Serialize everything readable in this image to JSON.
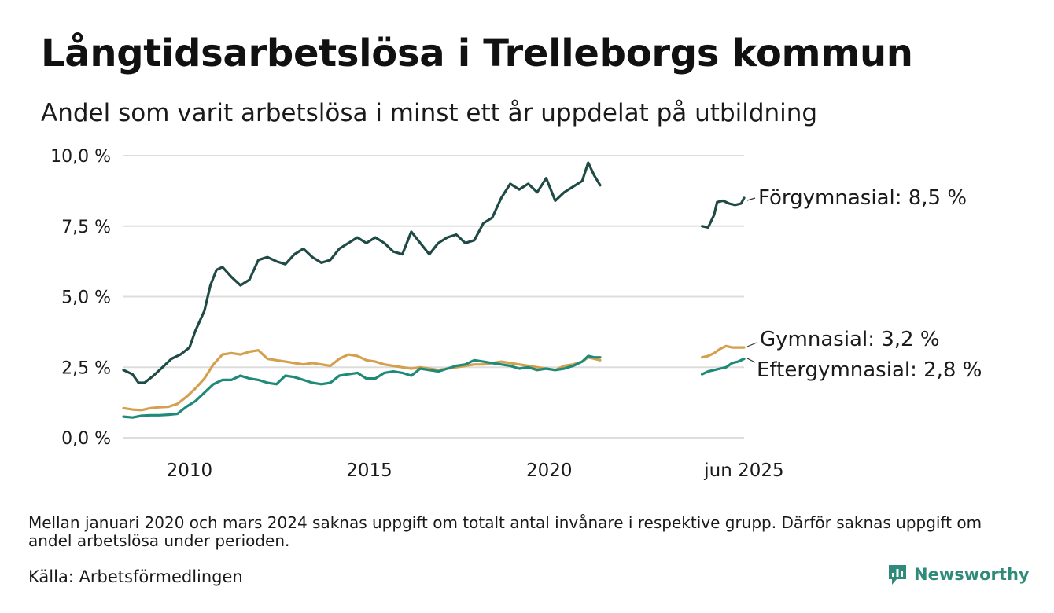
{
  "title": "Långtidsarbetslösa i Trelleborgs kommun",
  "subtitle": "Andel som varit arbetslösa i minst ett år uppdelat på utbildning",
  "note": "Mellan januari 2020 och mars 2024 saknas uppgift om totalt antal invånare i respektive grupp. Därför saknas uppgift om andel arbetslösa under perioden.",
  "source": "Källa: Arbetsförmedlingen",
  "brand": {
    "name": "Newsworthy",
    "logo_icon": "newsworthy-logo-icon"
  },
  "colors": {
    "forgymnasial": "#1f4a45",
    "gymnasial": "#d4a04e",
    "eftergymnasial": "#1f8a78",
    "grid": "#dddddd",
    "text": "#1a1a1a",
    "brand": "#2f8a7a"
  },
  "chart_data": {
    "type": "line",
    "title": "Långtidsarbetslösa i Trelleborgs kommun",
    "subtitle": "Andel som varit arbetslösa i minst ett år uppdelat på utbildning",
    "xlabel": "",
    "ylabel": "",
    "ylim": [
      0,
      10
    ],
    "xlim": [
      "2008-03",
      "2025-06"
    ],
    "y_ticks": [
      "0,0 %",
      "2,5 %",
      "5,0 %",
      "7,5 %",
      "10,0 %"
    ],
    "y_tick_values": [
      0,
      2.5,
      5,
      7.5,
      10
    ],
    "x_ticks": [
      {
        "date": "2010-01",
        "label": "2010"
      },
      {
        "date": "2015-01",
        "label": "2015"
      },
      {
        "date": "2020-01",
        "label": "2020"
      },
      {
        "date": "2025-06",
        "label": "jun 2025"
      }
    ],
    "grid": true,
    "series": [
      {
        "name": "Förgymnasial",
        "end_label": "Förgymnasial: 8,5 %",
        "color_key": "forgymnasial",
        "points": [
          [
            "2008-03",
            2.4
          ],
          [
            "2008-06",
            2.25
          ],
          [
            "2008-08",
            1.95
          ],
          [
            "2008-10",
            1.95
          ],
          [
            "2009-01",
            2.2
          ],
          [
            "2009-04",
            2.5
          ],
          [
            "2009-07",
            2.8
          ],
          [
            "2009-10",
            2.95
          ],
          [
            "2010-01",
            3.2
          ],
          [
            "2010-03",
            3.8
          ],
          [
            "2010-06",
            4.5
          ],
          [
            "2010-08",
            5.4
          ],
          [
            "2010-10",
            5.95
          ],
          [
            "2010-12",
            6.05
          ],
          [
            "2011-03",
            5.7
          ],
          [
            "2011-06",
            5.4
          ],
          [
            "2011-09",
            5.6
          ],
          [
            "2011-12",
            6.3
          ],
          [
            "2012-03",
            6.4
          ],
          [
            "2012-06",
            6.25
          ],
          [
            "2012-09",
            6.15
          ],
          [
            "2012-12",
            6.5
          ],
          [
            "2013-03",
            6.7
          ],
          [
            "2013-06",
            6.4
          ],
          [
            "2013-09",
            6.2
          ],
          [
            "2013-12",
            6.3
          ],
          [
            "2014-03",
            6.7
          ],
          [
            "2014-06",
            6.9
          ],
          [
            "2014-09",
            7.1
          ],
          [
            "2014-12",
            6.9
          ],
          [
            "2015-03",
            7.1
          ],
          [
            "2015-06",
            6.9
          ],
          [
            "2015-09",
            6.6
          ],
          [
            "2015-12",
            6.5
          ],
          [
            "2016-03",
            7.3
          ],
          [
            "2016-06",
            6.9
          ],
          [
            "2016-09",
            6.5
          ],
          [
            "2016-12",
            6.9
          ],
          [
            "2017-03",
            7.1
          ],
          [
            "2017-06",
            7.2
          ],
          [
            "2017-09",
            6.9
          ],
          [
            "2017-12",
            7.0
          ],
          [
            "2018-03",
            7.6
          ],
          [
            "2018-06",
            7.8
          ],
          [
            "2018-09",
            8.5
          ],
          [
            "2018-12",
            9.0
          ],
          [
            "2019-03",
            8.8
          ],
          [
            "2019-06",
            9.0
          ],
          [
            "2019-09",
            8.7
          ],
          [
            "2019-12",
            9.2
          ],
          [
            "2020-03",
            8.4
          ],
          [
            "2020-06",
            8.7
          ],
          [
            "2020-09",
            8.9
          ],
          [
            "2020-12",
            9.1
          ],
          [
            "2021-02",
            9.75
          ],
          [
            "2021-04",
            9.3
          ],
          [
            "2021-06",
            8.95
          ]
        ],
        "points_after_gap": [
          [
            "2024-04",
            7.5
          ],
          [
            "2024-06",
            7.45
          ],
          [
            "2024-08",
            7.9
          ],
          [
            "2024-09",
            8.35
          ],
          [
            "2024-11",
            8.4
          ],
          [
            "2025-01",
            8.3
          ],
          [
            "2025-03",
            8.25
          ],
          [
            "2025-05",
            8.3
          ],
          [
            "2025-06",
            8.5
          ]
        ]
      },
      {
        "name": "Gymnasial",
        "end_label": "Gymnasial: 3,2 %",
        "color_key": "gymnasial",
        "points": [
          [
            "2008-03",
            1.05
          ],
          [
            "2008-06",
            1.0
          ],
          [
            "2008-09",
            0.98
          ],
          [
            "2008-12",
            1.05
          ],
          [
            "2009-03",
            1.08
          ],
          [
            "2009-06",
            1.1
          ],
          [
            "2009-09",
            1.2
          ],
          [
            "2009-12",
            1.45
          ],
          [
            "2010-03",
            1.75
          ],
          [
            "2010-06",
            2.1
          ],
          [
            "2010-09",
            2.6
          ],
          [
            "2010-12",
            2.95
          ],
          [
            "2011-03",
            3.0
          ],
          [
            "2011-06",
            2.95
          ],
          [
            "2011-09",
            3.05
          ],
          [
            "2011-12",
            3.1
          ],
          [
            "2012-03",
            2.8
          ],
          [
            "2012-06",
            2.75
          ],
          [
            "2012-09",
            2.7
          ],
          [
            "2012-12",
            2.65
          ],
          [
            "2013-03",
            2.6
          ],
          [
            "2013-06",
            2.65
          ],
          [
            "2013-09",
            2.6
          ],
          [
            "2013-12",
            2.55
          ],
          [
            "2014-03",
            2.8
          ],
          [
            "2014-06",
            2.95
          ],
          [
            "2014-09",
            2.9
          ],
          [
            "2014-12",
            2.75
          ],
          [
            "2015-03",
            2.7
          ],
          [
            "2015-06",
            2.6
          ],
          [
            "2015-09",
            2.55
          ],
          [
            "2015-12",
            2.5
          ],
          [
            "2016-03",
            2.45
          ],
          [
            "2016-06",
            2.5
          ],
          [
            "2016-09",
            2.45
          ],
          [
            "2016-12",
            2.4
          ],
          [
            "2017-03",
            2.45
          ],
          [
            "2017-06",
            2.5
          ],
          [
            "2017-09",
            2.55
          ],
          [
            "2017-12",
            2.6
          ],
          [
            "2018-03",
            2.6
          ],
          [
            "2018-06",
            2.65
          ],
          [
            "2018-09",
            2.7
          ],
          [
            "2018-12",
            2.65
          ],
          [
            "2019-03",
            2.6
          ],
          [
            "2019-06",
            2.55
          ],
          [
            "2019-09",
            2.5
          ],
          [
            "2019-12",
            2.45
          ],
          [
            "2020-03",
            2.4
          ],
          [
            "2020-06",
            2.55
          ],
          [
            "2020-09",
            2.6
          ],
          [
            "2020-12",
            2.7
          ],
          [
            "2021-02",
            2.85
          ],
          [
            "2021-04",
            2.8
          ],
          [
            "2021-06",
            2.75
          ]
        ],
        "points_after_gap": [
          [
            "2024-04",
            2.85
          ],
          [
            "2024-06",
            2.9
          ],
          [
            "2024-08",
            3.0
          ],
          [
            "2024-10",
            3.15
          ],
          [
            "2024-12",
            3.25
          ],
          [
            "2025-02",
            3.2
          ],
          [
            "2025-04",
            3.2
          ],
          [
            "2025-06",
            3.2
          ]
        ]
      },
      {
        "name": "Eftergymnasial",
        "end_label": "Eftergymnasial: 2,8 %",
        "color_key": "eftergymnasial",
        "points": [
          [
            "2008-03",
            0.75
          ],
          [
            "2008-06",
            0.72
          ],
          [
            "2008-09",
            0.78
          ],
          [
            "2008-12",
            0.8
          ],
          [
            "2009-03",
            0.8
          ],
          [
            "2009-06",
            0.82
          ],
          [
            "2009-09",
            0.85
          ],
          [
            "2009-12",
            1.1
          ],
          [
            "2010-03",
            1.3
          ],
          [
            "2010-06",
            1.6
          ],
          [
            "2010-09",
            1.9
          ],
          [
            "2010-12",
            2.05
          ],
          [
            "2011-03",
            2.05
          ],
          [
            "2011-06",
            2.2
          ],
          [
            "2011-09",
            2.1
          ],
          [
            "2011-12",
            2.05
          ],
          [
            "2012-03",
            1.95
          ],
          [
            "2012-06",
            1.9
          ],
          [
            "2012-09",
            2.2
          ],
          [
            "2012-12",
            2.15
          ],
          [
            "2013-03",
            2.05
          ],
          [
            "2013-06",
            1.95
          ],
          [
            "2013-09",
            1.9
          ],
          [
            "2013-12",
            1.95
          ],
          [
            "2014-03",
            2.2
          ],
          [
            "2014-06",
            2.25
          ],
          [
            "2014-09",
            2.3
          ],
          [
            "2014-12",
            2.1
          ],
          [
            "2015-03",
            2.1
          ],
          [
            "2015-06",
            2.3
          ],
          [
            "2015-09",
            2.35
          ],
          [
            "2015-12",
            2.3
          ],
          [
            "2016-03",
            2.2
          ],
          [
            "2016-06",
            2.45
          ],
          [
            "2016-09",
            2.4
          ],
          [
            "2016-12",
            2.35
          ],
          [
            "2017-03",
            2.45
          ],
          [
            "2017-06",
            2.55
          ],
          [
            "2017-09",
            2.6
          ],
          [
            "2017-12",
            2.75
          ],
          [
            "2018-03",
            2.7
          ],
          [
            "2018-06",
            2.65
          ],
          [
            "2018-09",
            2.6
          ],
          [
            "2018-12",
            2.55
          ],
          [
            "2019-03",
            2.45
          ],
          [
            "2019-06",
            2.5
          ],
          [
            "2019-09",
            2.4
          ],
          [
            "2019-12",
            2.45
          ],
          [
            "2020-03",
            2.4
          ],
          [
            "2020-06",
            2.45
          ],
          [
            "2020-09",
            2.55
          ],
          [
            "2020-12",
            2.7
          ],
          [
            "2021-02",
            2.9
          ],
          [
            "2021-04",
            2.85
          ],
          [
            "2021-06",
            2.85
          ]
        ],
        "points_after_gap": [
          [
            "2024-04",
            2.25
          ],
          [
            "2024-06",
            2.35
          ],
          [
            "2024-08",
            2.4
          ],
          [
            "2024-10",
            2.45
          ],
          [
            "2024-12",
            2.5
          ],
          [
            "2025-02",
            2.65
          ],
          [
            "2025-04",
            2.7
          ],
          [
            "2025-06",
            2.8
          ]
        ]
      }
    ]
  }
}
